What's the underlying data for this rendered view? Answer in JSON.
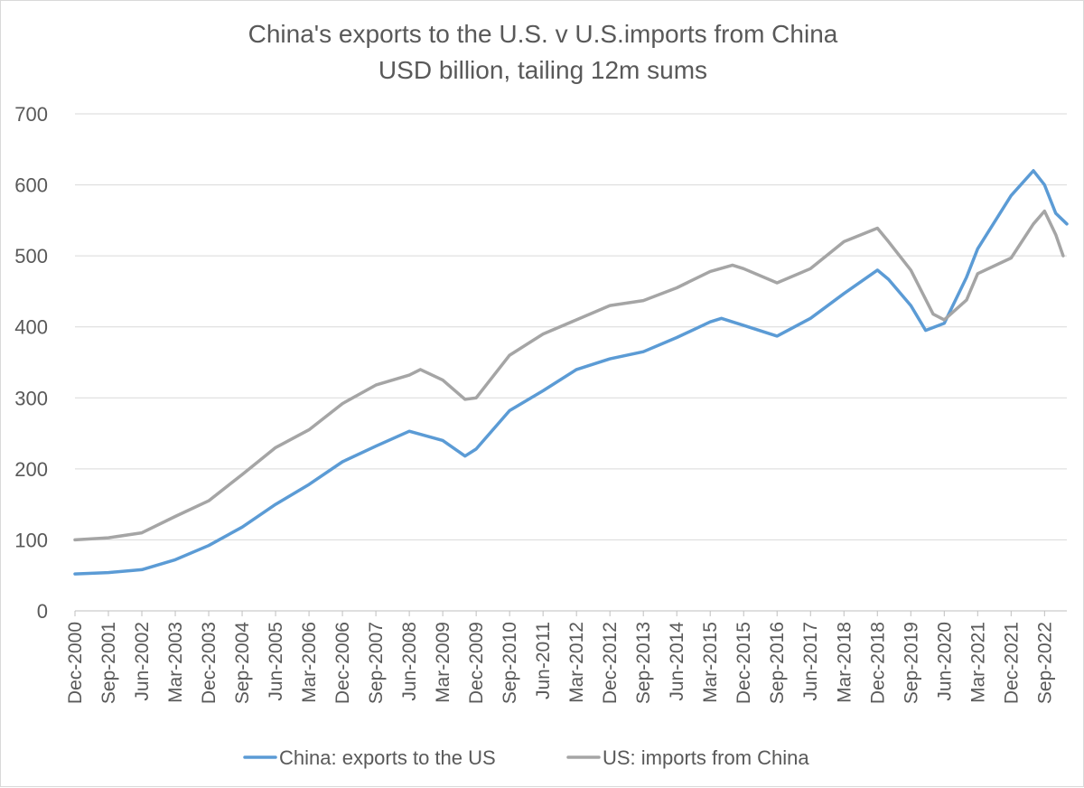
{
  "chart_data": {
    "type": "line",
    "title": "China's exports to the U.S. v U.S.imports from China",
    "subtitle": "USD billion, tailing 12m sums",
    "xlabel": "",
    "ylabel": "",
    "ylim": [
      0,
      700
    ],
    "yticks": [
      "0",
      "100",
      "200",
      "300",
      "400",
      "500",
      "600",
      "700"
    ],
    "grid": "horizontal",
    "legend": "bottom",
    "x_start": "Dec-2000",
    "x_tick_labels": [
      "Dec-2000",
      "Sep-2001",
      "Jun-2002",
      "Mar-2003",
      "Dec-2003",
      "Sep-2004",
      "Jun-2005",
      "Mar-2006",
      "Dec-2006",
      "Sep-2007",
      "Jun-2008",
      "Mar-2009",
      "Dec-2009",
      "Sep-2010",
      "Jun-2011",
      "Mar-2012",
      "Dec-2012",
      "Sep-2013",
      "Jun-2014",
      "Mar-2015",
      "Dec-2015",
      "Sep-2016",
      "Jun-2017",
      "Mar-2018",
      "Dec-2018",
      "Sep-2019",
      "Jun-2020",
      "Mar-2021",
      "Dec-2021",
      "Sep-2022"
    ],
    "series": [
      {
        "name": "China: exports to the US",
        "color": "#5b9bd5",
        "points": [
          [
            "Dec-2000",
            52
          ],
          [
            "Sep-2001",
            54
          ],
          [
            "Jun-2002",
            58
          ],
          [
            "Mar-2003",
            72
          ],
          [
            "Dec-2003",
            92
          ],
          [
            "Sep-2004",
            118
          ],
          [
            "Jun-2005",
            150
          ],
          [
            "Mar-2006",
            178
          ],
          [
            "Dec-2006",
            210
          ],
          [
            "Sep-2007",
            232
          ],
          [
            "Jun-2008",
            253
          ],
          [
            "Mar-2009",
            240
          ],
          [
            "Sep-2009",
            218
          ],
          [
            "Dec-2009",
            228
          ],
          [
            "Sep-2010",
            282
          ],
          [
            "Jun-2011",
            310
          ],
          [
            "Mar-2012",
            340
          ],
          [
            "Dec-2012",
            355
          ],
          [
            "Sep-2013",
            365
          ],
          [
            "Jun-2014",
            385
          ],
          [
            "Mar-2015",
            407
          ],
          [
            "Jun-2015",
            412
          ],
          [
            "Dec-2015",
            402
          ],
          [
            "Sep-2016",
            387
          ],
          [
            "Jun-2017",
            412
          ],
          [
            "Mar-2018",
            447
          ],
          [
            "Dec-2018",
            480
          ],
          [
            "Mar-2019",
            467
          ],
          [
            "Sep-2019",
            430
          ],
          [
            "Jan-2020",
            395
          ],
          [
            "Jun-2020",
            405
          ],
          [
            "Dec-2020",
            470
          ],
          [
            "Mar-2021",
            510
          ],
          [
            "Dec-2021",
            585
          ],
          [
            "Jun-2022",
            620
          ],
          [
            "Sep-2022",
            600
          ],
          [
            "Dec-2022",
            560
          ],
          [
            "Mar-2023",
            545
          ]
        ]
      },
      {
        "name": "US: imports from China",
        "color": "#a5a5a5",
        "points": [
          [
            "Dec-2000",
            100
          ],
          [
            "Sep-2001",
            103
          ],
          [
            "Jun-2002",
            110
          ],
          [
            "Mar-2003",
            133
          ],
          [
            "Dec-2003",
            155
          ],
          [
            "Sep-2004",
            192
          ],
          [
            "Jun-2005",
            230
          ],
          [
            "Mar-2006",
            255
          ],
          [
            "Dec-2006",
            292
          ],
          [
            "Sep-2007",
            318
          ],
          [
            "Jun-2008",
            332
          ],
          [
            "Sep-2008",
            340
          ],
          [
            "Mar-2009",
            325
          ],
          [
            "Sep-2009",
            298
          ],
          [
            "Dec-2009",
            300
          ],
          [
            "Sep-2010",
            360
          ],
          [
            "Jun-2011",
            390
          ],
          [
            "Mar-2012",
            410
          ],
          [
            "Dec-2012",
            430
          ],
          [
            "Sep-2013",
            437
          ],
          [
            "Jun-2014",
            455
          ],
          [
            "Mar-2015",
            478
          ],
          [
            "Sep-2015",
            487
          ],
          [
            "Dec-2015",
            482
          ],
          [
            "Sep-2016",
            462
          ],
          [
            "Jun-2017",
            482
          ],
          [
            "Mar-2018",
            520
          ],
          [
            "Dec-2018",
            539
          ],
          [
            "Mar-2019",
            520
          ],
          [
            "Sep-2019",
            480
          ],
          [
            "Mar-2020",
            418
          ],
          [
            "Jun-2020",
            410
          ],
          [
            "Dec-2020",
            438
          ],
          [
            "Mar-2021",
            475
          ],
          [
            "Dec-2021",
            497
          ],
          [
            "Jun-2022",
            545
          ],
          [
            "Sep-2022",
            563
          ],
          [
            "Dec-2022",
            530
          ],
          [
            "Feb-2023",
            500
          ]
        ]
      }
    ]
  }
}
